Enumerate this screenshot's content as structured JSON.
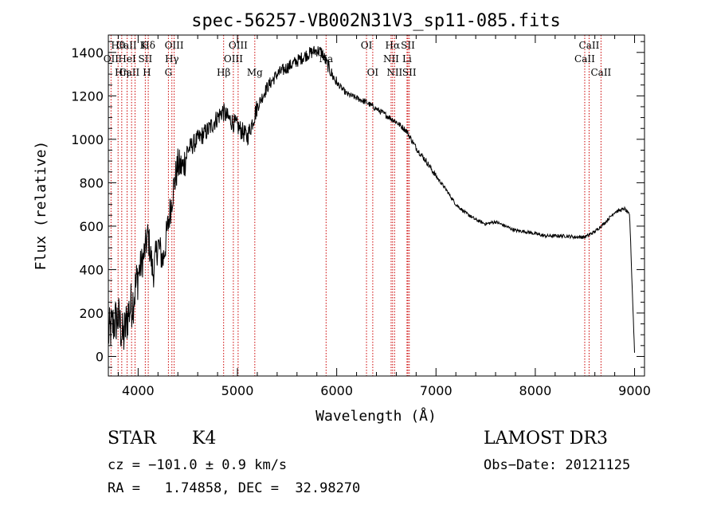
{
  "chart_data": {
    "type": "line",
    "title": "spec-56257-VB002N31V3_sp11-085.fits",
    "xlabel": "Wavelength (Å)",
    "ylabel": "Flux (relative)",
    "xlim": [
      3700,
      9100
    ],
    "ylim": [
      -90,
      1480
    ],
    "xticks": [
      4000,
      5000,
      6000,
      7000,
      8000,
      9000
    ],
    "yticks": [
      0,
      200,
      400,
      600,
      800,
      1000,
      1200,
      1400
    ],
    "xtick_labels": [
      "4000",
      "5000",
      "6000",
      "7000",
      "8000",
      "9000"
    ],
    "ytick_labels": [
      "0",
      "200",
      "400",
      "600",
      "800",
      "1000",
      "1200",
      "1400"
    ],
    "series": [
      {
        "name": "spectrum",
        "x": [
          3700,
          3750,
          3800,
          3850,
          3900,
          3950,
          4000,
          4050,
          4100,
          4150,
          4200,
          4250,
          4300,
          4350,
          4400,
          4450,
          4500,
          4600,
          4700,
          4800,
          4850,
          4900,
          5000,
          5100,
          5200,
          5300,
          5400,
          5500,
          5600,
          5700,
          5800,
          5850,
          5900,
          5950,
          6000,
          6100,
          6200,
          6300,
          6400,
          6500,
          6600,
          6700,
          6800,
          6900,
          7000,
          7100,
          7200,
          7300,
          7400,
          7500,
          7600,
          7700,
          7800,
          7900,
          8000,
          8100,
          8200,
          8300,
          8400,
          8500,
          8600,
          8700,
          8800,
          8900,
          8950,
          9000
        ],
        "y": [
          100,
          150,
          180,
          80,
          200,
          260,
          380,
          450,
          560,
          380,
          520,
          440,
          600,
          760,
          880,
          870,
          950,
          1000,
          1040,
          1100,
          1130,
          1100,
          1060,
          1010,
          1150,
          1240,
          1300,
          1330,
          1360,
          1390,
          1410,
          1400,
          1350,
          1300,
          1260,
          1210,
          1190,
          1170,
          1140,
          1110,
          1080,
          1040,
          960,
          900,
          830,
          770,
          700,
          660,
          630,
          610,
          620,
          600,
          580,
          575,
          565,
          555,
          555,
          555,
          550,
          550,
          575,
          615,
          665,
          680,
          650,
          20
        ]
      }
    ],
    "lines": [
      {
        "name": "Hθ",
        "x": 3798,
        "row": 1
      },
      {
        "name": "OII",
        "x": 3727,
        "row": 2
      },
      {
        "name": "CaII K",
        "x": 3934,
        "row": 1
      },
      {
        "name": "CaII H",
        "x": 3969,
        "row": 3
      },
      {
        "name": "HeI",
        "x": 3889,
        "row": 2
      },
      {
        "name": "Hη",
        "x": 3835,
        "row": 3
      },
      {
        "name": "SII",
        "x": 4072,
        "row": 2
      },
      {
        "name": "Hδ",
        "x": 4102,
        "row": 1
      },
      {
        "name": "OIII",
        "x": 4363,
        "row": 1
      },
      {
        "name": "Hγ",
        "x": 4340,
        "row": 2
      },
      {
        "name": "G",
        "x": 4305,
        "row": 3
      },
      {
        "name": "Hβ",
        "x": 4861,
        "row": 3
      },
      {
        "name": "OIII",
        "x": 4959,
        "row": 2
      },
      {
        "name": "OIII",
        "x": 5007,
        "row": 1
      },
      {
        "name": "Mg",
        "x": 5175,
        "row": 3
      },
      {
        "name": "Na",
        "x": 5893,
        "row": 2
      },
      {
        "name": "OI",
        "x": 6300,
        "row": 1
      },
      {
        "name": "OI",
        "x": 6363,
        "row": 3
      },
      {
        "name": "NII",
        "x": 6548,
        "row": 2
      },
      {
        "name": "Hα",
        "x": 6563,
        "row": 1
      },
      {
        "name": "NII",
        "x": 6583,
        "row": 3
      },
      {
        "name": "SII",
        "x": 6717,
        "row": 1
      },
      {
        "name": "Li",
        "x": 6708,
        "row": 2
      },
      {
        "name": "SII",
        "x": 6731,
        "row": 3
      },
      {
        "name": "CaII",
        "x": 8498,
        "row": 2
      },
      {
        "name": "CaII",
        "x": 8542,
        "row": 1
      },
      {
        "name": "CaII",
        "x": 8662,
        "row": 3
      }
    ]
  },
  "info": {
    "object_type": "STAR",
    "subclass": "K4",
    "survey": "LAMOST DR3",
    "cz": "cz = −101.0 ± 0.9 km/s",
    "obs_date": "Obs−Date: 20121125",
    "radec": "RA =   1.74858, DEC =  32.98270"
  },
  "colors": {
    "spectrum": "#000000",
    "line_marker": "#cc0000",
    "axis": "#000000",
    "background": "#ffffff"
  }
}
